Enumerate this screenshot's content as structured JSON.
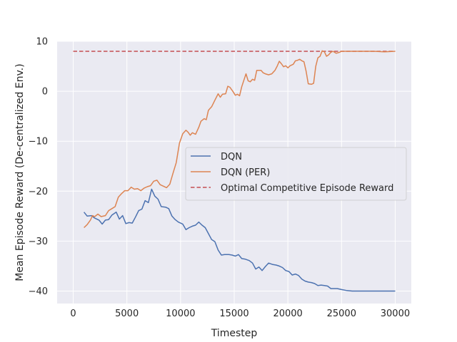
{
  "chart_data": {
    "type": "line",
    "title": "",
    "xlabel": "Timestep",
    "ylabel": "Mean Episode Reward (De-centralized Env.)",
    "xlim": [
      -1500,
      31500
    ],
    "ylim": [
      -42.5,
      10
    ],
    "xticks": [
      0,
      5000,
      10000,
      15000,
      20000,
      25000,
      30000
    ],
    "xtick_labels": [
      "0",
      "5000",
      "10000",
      "15000",
      "20000",
      "25000",
      "30000"
    ],
    "yticks": [
      -40,
      -30,
      -20,
      -10,
      0,
      10
    ],
    "ytick_labels": [
      "−40",
      "−30",
      "−20",
      "−10",
      "0",
      "10"
    ],
    "grid": true,
    "legend_position": "center-right",
    "series": [
      {
        "name": "DQN",
        "color": "#4c72b0",
        "style": "solid",
        "points": [
          [
            1000,
            -24.2
          ],
          [
            1300,
            -25.0
          ],
          [
            1700,
            -24.9
          ],
          [
            2000,
            -25.4
          ],
          [
            2400,
            -25.8
          ],
          [
            2700,
            -26.6
          ],
          [
            3000,
            -25.8
          ],
          [
            3300,
            -25.7
          ],
          [
            3600,
            -24.8
          ],
          [
            4000,
            -24.2
          ],
          [
            4300,
            -25.6
          ],
          [
            4600,
            -24.9
          ],
          [
            4900,
            -26.5
          ],
          [
            5200,
            -26.3
          ],
          [
            5500,
            -26.4
          ],
          [
            5800,
            -25.2
          ],
          [
            6100,
            -23.9
          ],
          [
            6400,
            -23.6
          ],
          [
            6700,
            -21.9
          ],
          [
            7000,
            -22.3
          ],
          [
            7300,
            -19.6
          ],
          [
            7600,
            -21.0
          ],
          [
            7900,
            -21.6
          ],
          [
            8200,
            -23.1
          ],
          [
            8600,
            -23.2
          ],
          [
            8900,
            -23.5
          ],
          [
            9200,
            -25.0
          ],
          [
            9500,
            -25.7
          ],
          [
            9800,
            -26.2
          ],
          [
            10200,
            -26.6
          ],
          [
            10500,
            -27.7
          ],
          [
            10800,
            -27.3
          ],
          [
            11100,
            -27.0
          ],
          [
            11400,
            -26.8
          ],
          [
            11700,
            -26.2
          ],
          [
            12000,
            -26.8
          ],
          [
            12300,
            -27.3
          ],
          [
            12600,
            -28.5
          ],
          [
            12900,
            -29.7
          ],
          [
            13200,
            -30.1
          ],
          [
            13500,
            -31.8
          ],
          [
            13800,
            -32.8
          ],
          [
            14100,
            -32.7
          ],
          [
            14500,
            -32.7
          ],
          [
            14800,
            -32.8
          ],
          [
            15100,
            -33.0
          ],
          [
            15400,
            -32.7
          ],
          [
            15700,
            -33.5
          ],
          [
            16000,
            -33.6
          ],
          [
            16400,
            -33.9
          ],
          [
            16700,
            -34.4
          ],
          [
            17000,
            -35.6
          ],
          [
            17300,
            -35.2
          ],
          [
            17600,
            -35.9
          ],
          [
            17900,
            -35.1
          ],
          [
            18200,
            -34.4
          ],
          [
            18600,
            -34.7
          ],
          [
            18900,
            -34.8
          ],
          [
            19200,
            -35.0
          ],
          [
            19500,
            -35.3
          ],
          [
            19800,
            -35.9
          ],
          [
            20100,
            -36.1
          ],
          [
            20400,
            -36.8
          ],
          [
            20700,
            -36.6
          ],
          [
            21000,
            -36.9
          ],
          [
            21300,
            -37.6
          ],
          [
            21600,
            -38.0
          ],
          [
            21900,
            -38.2
          ],
          [
            22200,
            -38.3
          ],
          [
            22500,
            -38.5
          ],
          [
            22800,
            -38.9
          ],
          [
            23100,
            -38.8
          ],
          [
            23400,
            -38.9
          ],
          [
            23700,
            -39.0
          ],
          [
            24000,
            -39.5
          ],
          [
            24600,
            -39.5
          ],
          [
            25000,
            -39.7
          ],
          [
            25500,
            -39.9
          ],
          [
            26000,
            -40.0
          ],
          [
            30000,
            -40.0
          ]
        ]
      },
      {
        "name": "DQN (PER)",
        "color": "#dd8452",
        "style": "solid",
        "points": [
          [
            1000,
            -27.3
          ],
          [
            1300,
            -26.7
          ],
          [
            1600,
            -25.8
          ],
          [
            1800,
            -24.9
          ],
          [
            2000,
            -25.1
          ],
          [
            2300,
            -24.6
          ],
          [
            2600,
            -25.1
          ],
          [
            3000,
            -24.9
          ],
          [
            3300,
            -23.9
          ],
          [
            3600,
            -23.5
          ],
          [
            3900,
            -23.1
          ],
          [
            4200,
            -21.2
          ],
          [
            4500,
            -20.5
          ],
          [
            4800,
            -19.9
          ],
          [
            5100,
            -19.9
          ],
          [
            5400,
            -19.2
          ],
          [
            5700,
            -19.6
          ],
          [
            6000,
            -19.5
          ],
          [
            6300,
            -19.9
          ],
          [
            6600,
            -19.4
          ],
          [
            6900,
            -19.1
          ],
          [
            7200,
            -18.9
          ],
          [
            7500,
            -18.0
          ],
          [
            7800,
            -17.8
          ],
          [
            8100,
            -18.7
          ],
          [
            8400,
            -19.0
          ],
          [
            8700,
            -19.3
          ],
          [
            9000,
            -18.6
          ],
          [
            9300,
            -16.4
          ],
          [
            9600,
            -14.3
          ],
          [
            9900,
            -10.4
          ],
          [
            10200,
            -8.5
          ],
          [
            10500,
            -7.8
          ],
          [
            10700,
            -8.2
          ],
          [
            10900,
            -8.8
          ],
          [
            11100,
            -8.3
          ],
          [
            11400,
            -8.6
          ],
          [
            11700,
            -7.2
          ],
          [
            11900,
            -6.0
          ],
          [
            12200,
            -5.5
          ],
          [
            12400,
            -5.7
          ],
          [
            12600,
            -3.8
          ],
          [
            12900,
            -3.1
          ],
          [
            13200,
            -1.8
          ],
          [
            13500,
            -0.5
          ],
          [
            13700,
            -1.2
          ],
          [
            13900,
            -0.6
          ],
          [
            14200,
            -0.5
          ],
          [
            14400,
            1.0
          ],
          [
            14600,
            0.8
          ],
          [
            14900,
            -0.1
          ],
          [
            15100,
            -0.8
          ],
          [
            15300,
            -0.6
          ],
          [
            15500,
            -0.9
          ],
          [
            15700,
            0.9
          ],
          [
            15900,
            2.2
          ],
          [
            16100,
            3.5
          ],
          [
            16300,
            2.1
          ],
          [
            16500,
            1.9
          ],
          [
            16700,
            2.4
          ],
          [
            16900,
            2.2
          ],
          [
            17100,
            4.2
          ],
          [
            17500,
            4.2
          ],
          [
            17700,
            3.7
          ],
          [
            17900,
            3.5
          ],
          [
            18200,
            3.3
          ],
          [
            18500,
            3.5
          ],
          [
            18800,
            4.2
          ],
          [
            19000,
            5.0
          ],
          [
            19200,
            6.0
          ],
          [
            19400,
            5.5
          ],
          [
            19600,
            4.9
          ],
          [
            19800,
            5.1
          ],
          [
            20000,
            4.7
          ],
          [
            20200,
            5.1
          ],
          [
            20500,
            5.4
          ],
          [
            20700,
            6.1
          ],
          [
            20900,
            6.2
          ],
          [
            21100,
            6.4
          ],
          [
            21300,
            6.1
          ],
          [
            21500,
            5.9
          ],
          [
            21700,
            4.0
          ],
          [
            21900,
            1.5
          ],
          [
            22200,
            1.4
          ],
          [
            22400,
            1.6
          ],
          [
            22600,
            5.0
          ],
          [
            22800,
            6.7
          ],
          [
            23000,
            7.0
          ],
          [
            23200,
            8.1
          ],
          [
            23400,
            7.9
          ],
          [
            23600,
            7.0
          ],
          [
            23800,
            7.3
          ],
          [
            24000,
            7.8
          ],
          [
            24200,
            8.0
          ],
          [
            24500,
            7.6
          ],
          [
            24800,
            7.8
          ],
          [
            25000,
            8.0
          ],
          [
            25600,
            8.0
          ],
          [
            26200,
            8.0
          ],
          [
            27000,
            8.0
          ],
          [
            28000,
            8.0
          ],
          [
            29000,
            7.9
          ],
          [
            30000,
            8.0
          ]
        ]
      },
      {
        "name": "Optimal Competitive Episode Reward",
        "color": "#c44e52",
        "style": "dashed",
        "points": [
          [
            0,
            8.0
          ],
          [
            30000,
            8.0
          ]
        ]
      }
    ]
  }
}
